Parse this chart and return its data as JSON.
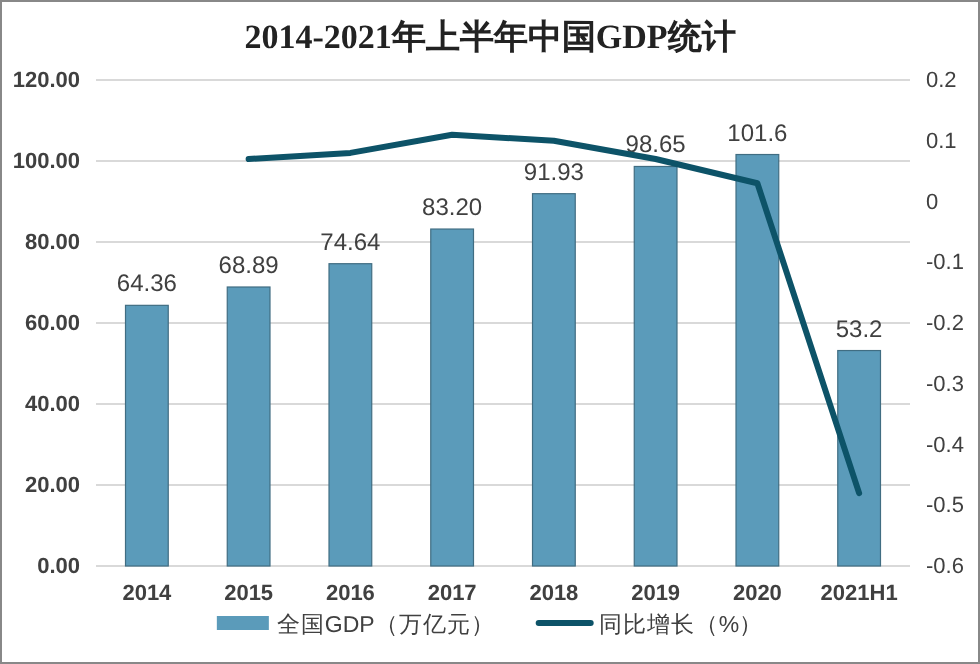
{
  "chart_data": {
    "type": "bar",
    "title": "2014-2021年上半年中国GDP统计",
    "categories": [
      "2014",
      "2015",
      "2016",
      "2017",
      "2018",
      "2019",
      "2020",
      "2021H1"
    ],
    "series": [
      {
        "name": "全国GDP（万亿元）",
        "color": "#5b9bba",
        "values": [
          64.36,
          68.89,
          74.64,
          83.2,
          91.93,
          98.65,
          101.6,
          53.2
        ],
        "value_labels": [
          "64.36",
          "68.89",
          "74.64",
          "83.20",
          "91.93",
          "98.65",
          "101.6",
          "53.2"
        ]
      },
      {
        "name": "同比增长（%）",
        "type": "line",
        "axis": "y2",
        "color": "#0d5368",
        "values": [
          null,
          0.07,
          0.08,
          0.11,
          0.1,
          0.07,
          0.03,
          -0.48
        ]
      }
    ],
    "ylim": [
      0,
      120
    ],
    "yticks": [
      {
        "value": 0,
        "label": "0.00"
      },
      {
        "value": 20,
        "label": "20.00"
      },
      {
        "value": 40,
        "label": "40.00"
      },
      {
        "value": 60,
        "label": "60.00"
      },
      {
        "value": 80,
        "label": "80.00"
      },
      {
        "value": 100,
        "label": "100.00"
      },
      {
        "value": 120,
        "label": "120.00"
      }
    ],
    "y2lim": [
      -0.6,
      0.2
    ],
    "y2ticks": [
      -0.6,
      -0.5,
      -0.4,
      -0.3,
      -0.2,
      -0.1,
      0,
      0.1,
      0.2
    ],
    "grid": "y",
    "legend": "bottom",
    "marker": "none",
    "line_style": "solid"
  }
}
